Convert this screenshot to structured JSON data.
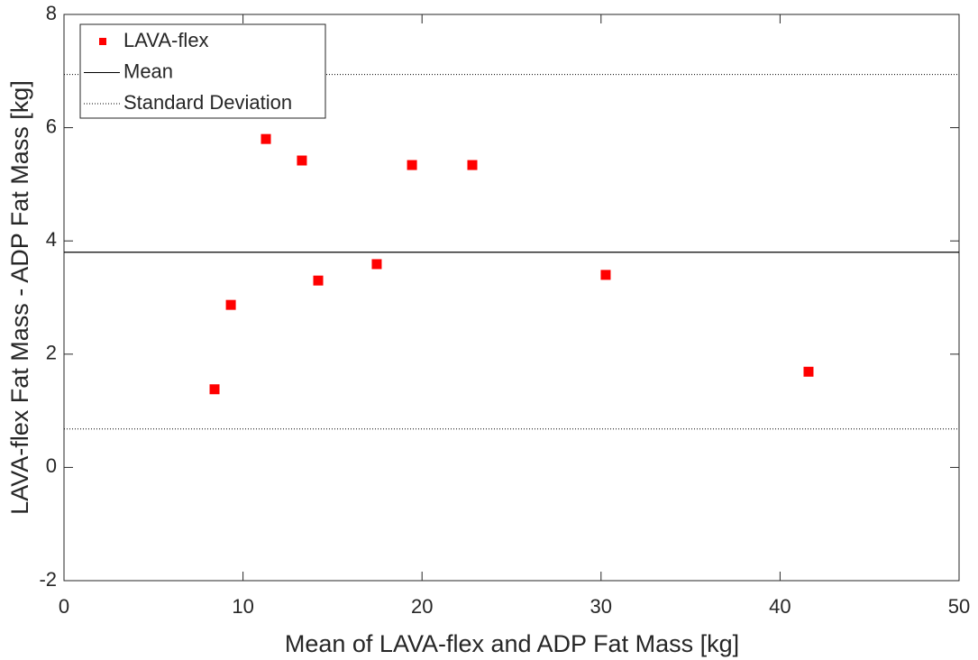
{
  "chart_data": {
    "type": "scatter",
    "xlabel": "Mean of LAVA-flex and ADP Fat Mass [kg]",
    "ylabel": "LAVA-flex Fat Mass - ADP Fat Mass [kg]",
    "xlim": [
      0,
      50
    ],
    "xticks": [
      0,
      10,
      20,
      30,
      40,
      50
    ],
    "ylim": [
      -2,
      8
    ],
    "yticks": [
      -2,
      0,
      2,
      4,
      6,
      8
    ],
    "grid": false,
    "legend": "upper left",
    "series": [
      {
        "name": "LAVA-flex",
        "color": "#ff0000",
        "style": "marker",
        "x": [
          8.41,
          9.32,
          11.28,
          13.29,
          14.2,
          17.47,
          19.44,
          22.81,
          30.26,
          41.59
        ],
        "values": [
          1.38,
          2.87,
          5.8,
          5.42,
          3.3,
          3.59,
          5.34,
          5.34,
          3.4,
          1.69
        ]
      },
      {
        "name": "Mean",
        "color": "#000000",
        "style": "solid",
        "values": [
          3.8
        ]
      },
      {
        "name": "Standard Deviation",
        "color": "#000000",
        "style": "dotted",
        "values": [
          6.94,
          0.68
        ]
      }
    ]
  }
}
